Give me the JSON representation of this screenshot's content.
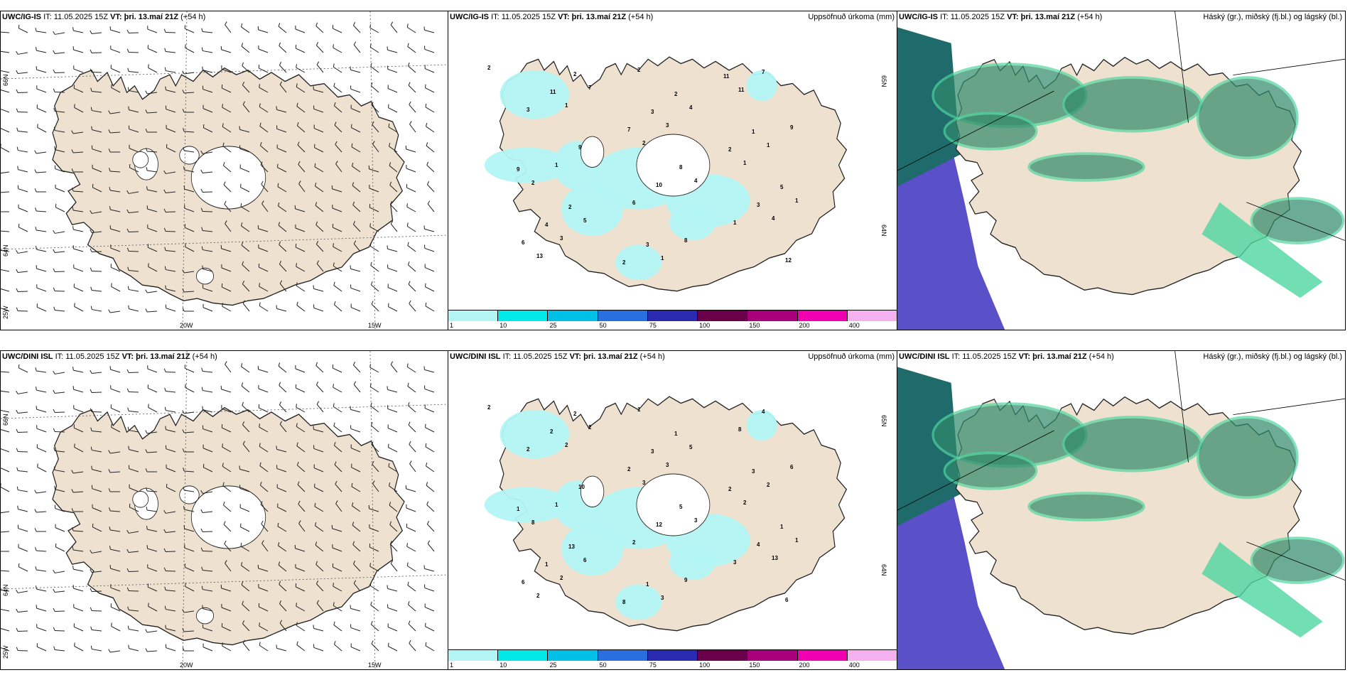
{
  "rows": [
    {
      "model": "UWC/IG-IS",
      "it_label": "IT:",
      "it_value": "11.05.2025 15Z",
      "vt_label": "VT:",
      "vt_value": "þri. 13.maí 21Z",
      "lead": "(+54 h)",
      "wind_axis": {
        "lat_top": "66N",
        "lat_mid": "64N",
        "lon_left": "25W",
        "lon_mid": "20W",
        "lon_right": "15W"
      },
      "precip_values": [
        "2",
        "1",
        "2",
        "4",
        "4",
        "13",
        "7",
        "3",
        "1",
        "1",
        "3",
        "2",
        "4",
        "1",
        "2",
        "5",
        "1",
        "11",
        "9",
        "1",
        "6",
        "8",
        "7",
        "3",
        "9",
        "10",
        "1",
        "12",
        "11",
        "7",
        "8",
        "3",
        "6",
        "2",
        "3",
        "2",
        "5",
        "4",
        "2",
        "2",
        "1",
        "9",
        "2",
        "3",
        "11"
      ],
      "precip_lat_top": "65N",
      "precip_lat_mid": "64N"
    },
    {
      "model": "UWC/DINI ISL",
      "it_label": "IT:",
      "it_value": "11.05.2025 15Z",
      "vt_label": "VT:",
      "vt_value": "þri. 13.maí 21Z",
      "lead": "(+54 h)",
      "wind_axis": {
        "lat_top": "66N",
        "lat_mid": "64N",
        "lon_left": "25W",
        "lon_mid": "20W",
        "lon_right": "15W"
      },
      "precip_values": [
        "2",
        "2",
        "3",
        "3",
        "13",
        "2",
        "2",
        "3",
        "2",
        "1",
        "2",
        "1",
        "5",
        "2",
        "8",
        "6",
        "3",
        "8",
        "6",
        "1",
        "2",
        "9",
        "4",
        "2",
        "10",
        "12",
        "3",
        "6",
        "2",
        "2",
        "5",
        "4",
        "6",
        "2",
        "3",
        "2",
        "1",
        "1",
        "8",
        "1",
        "3",
        "1",
        "13",
        "1"
      ],
      "precip_lat_top": "65N",
      "precip_lat_mid": "64N"
    }
  ],
  "precip_title": "Uppsöfnuð úrkoma (mm)",
  "cloud_title": "Háský (gr.), miðský (fj.bl.) og lágský (bl.)",
  "colorbar": {
    "ticks": [
      "1",
      "10",
      "25",
      "50",
      "75",
      "100",
      "150",
      "200",
      "400"
    ],
    "colors": [
      "#b3f5f5",
      "#00e8e8",
      "#00c0e8",
      "#2a6fe0",
      "#2a2ab0",
      "#6a004a",
      "#a8007a",
      "#f000b0",
      "#f5b0f0"
    ]
  },
  "colors": {
    "land": "#efe1cf",
    "coast": "#222222",
    "cloud_high": "#4fd6a0",
    "cloud_mid": "#2f8a6a",
    "cloud_low": "#5a50c8",
    "precip_light": "#b3f5f5"
  }
}
